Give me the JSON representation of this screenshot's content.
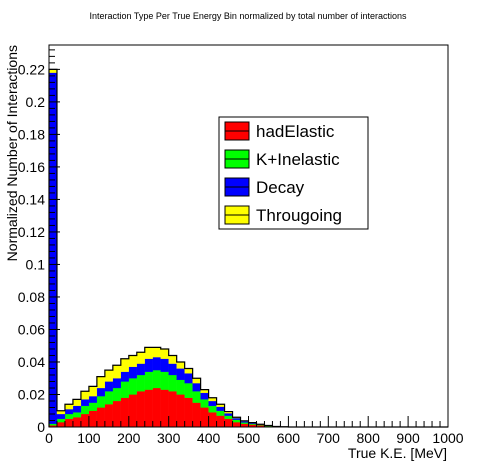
{
  "chart_data": {
    "type": "bar",
    "stacked": true,
    "title": "Interaction Type Per True Energy Bin normalized by total number of interactions",
    "xlabel": "True K.E. [MeV]",
    "ylabel": "Normalized Number of Interactions",
    "xlim": [
      0,
      1000
    ],
    "ylim": [
      0,
      0.235
    ],
    "bin_width": 20,
    "x_ticks": [
      "0",
      "100",
      "200",
      "300",
      "400",
      "500",
      "600",
      "700",
      "800",
      "900",
      "1000"
    ],
    "y_ticks": [
      "0",
      "0.02",
      "0.04",
      "0.06",
      "0.08",
      "0.1",
      "0.12",
      "0.14",
      "0.16",
      "0.18",
      "0.2",
      "0.22"
    ],
    "grid": false,
    "legend_position": "top-right",
    "bin_edges": [
      0,
      20,
      40,
      60,
      80,
      100,
      120,
      140,
      160,
      180,
      200,
      220,
      240,
      260,
      280,
      300,
      320,
      340,
      360,
      380,
      400,
      420,
      440,
      460,
      480,
      500,
      520,
      540,
      560,
      580,
      600,
      620,
      640,
      660,
      680,
      700,
      720,
      740,
      760,
      780,
      800,
      820,
      840,
      860,
      880,
      900,
      920,
      940,
      960,
      980,
      1000
    ],
    "series": [
      {
        "name": "hadElastic",
        "color": "#ff0000",
        "values": [
          0.001,
          0.003,
          0.005,
          0.006,
          0.008,
          0.01,
          0.012,
          0.014,
          0.016,
          0.018,
          0.02,
          0.022,
          0.023,
          0.024,
          0.023,
          0.022,
          0.02,
          0.018,
          0.015,
          0.012,
          0.009,
          0.007,
          0.005,
          0.003,
          0.002,
          0.0015,
          0.001,
          0.0005,
          0.0003,
          0.0002,
          0,
          0,
          0,
          0,
          0,
          0,
          0,
          0,
          0,
          0,
          0,
          0,
          0,
          0,
          0,
          0,
          0,
          0,
          0,
          0
        ]
      },
      {
        "name": "K+Inelastic",
        "color": "#00ff00",
        "values": [
          0.001,
          0.002,
          0.003,
          0.003,
          0.005,
          0.005,
          0.007,
          0.008,
          0.008,
          0.01,
          0.01,
          0.01,
          0.011,
          0.011,
          0.011,
          0.01,
          0.009,
          0.009,
          0.007,
          0.005,
          0.004,
          0.003,
          0.002,
          0.0015,
          0.0008,
          0.0005,
          0.0003,
          0.0002,
          0,
          0,
          0,
          0,
          0,
          0,
          0,
          0,
          0,
          0,
          0,
          0,
          0,
          0,
          0,
          0,
          0,
          0,
          0,
          0,
          0,
          0
        ]
      },
      {
        "name": "Decay",
        "color": "#0000ff",
        "values": [
          0.216,
          0.003,
          0.003,
          0.004,
          0.004,
          0.004,
          0.005,
          0.006,
          0.006,
          0.006,
          0.007,
          0.007,
          0.008,
          0.008,
          0.008,
          0.007,
          0.007,
          0.006,
          0.005,
          0.004,
          0.003,
          0.0025,
          0.0015,
          0.001,
          0.0007,
          0.0005,
          0.0002,
          0.0001,
          0,
          0,
          0,
          0,
          0,
          0,
          0,
          0,
          0,
          0,
          0,
          0,
          0,
          0,
          0,
          0,
          0,
          0,
          0,
          0,
          0,
          0
        ]
      },
      {
        "name": "Througoing",
        "color": "#ffff00",
        "values": [
          0.002,
          0.002,
          0.003,
          0.004,
          0.005,
          0.006,
          0.007,
          0.007,
          0.008,
          0.008,
          0.007,
          0.007,
          0.007,
          0.006,
          0.006,
          0.005,
          0.004,
          0.003,
          0.003,
          0.002,
          0.002,
          0.0015,
          0.001,
          0.0005,
          0.0003,
          0.0002,
          0.0002,
          0.0001,
          0,
          0,
          0,
          0,
          0,
          0,
          0,
          0,
          0,
          0,
          0,
          0,
          0,
          0,
          0,
          0,
          0,
          0,
          0,
          0,
          0,
          0
        ]
      }
    ]
  }
}
